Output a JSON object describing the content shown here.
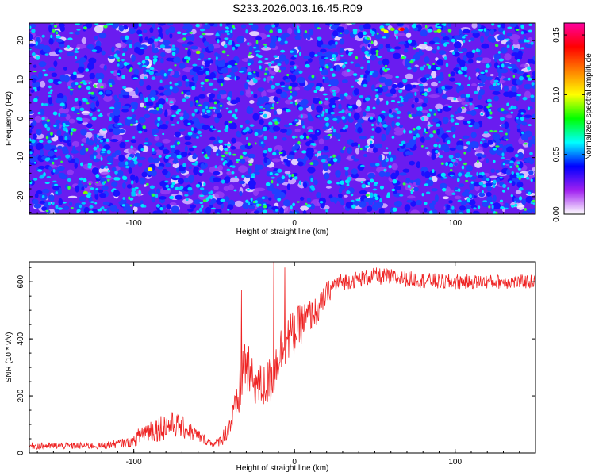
{
  "page_title": "S233.2026.003.16.45.R09",
  "chart_data": [
    {
      "type": "heatmap",
      "title": "S233.2026.003.16.45.R09",
      "xlabel": "Height of straight line (km)",
      "ylabel": "Frequency (Hz)",
      "xlim": [
        -165,
        150
      ],
      "ylim": [
        -24.5,
        24.5
      ],
      "x_ticks": [
        -100,
        0,
        100
      ],
      "y_ticks": [
        -20,
        -10,
        0,
        10,
        20
      ],
      "colorbar": {
        "label": "Normalized spectral amplitude",
        "range": [
          0,
          0.16
        ],
        "ticks": [
          "0.00",
          "0.05",
          "0.10",
          "0.15"
        ],
        "colors": [
          "#ffffff",
          "#a020f0",
          "#0000ff",
          "#00ffff",
          "#00ff00",
          "#ffff00",
          "#ff8000",
          "#ff0000",
          "#ff00a0"
        ]
      },
      "description": "Speckled broadband noise; values mostly 0.01-0.05 with scattered peaks up to ~0.15 near x=55-70 km, 22-23 Hz"
    },
    {
      "type": "line",
      "xlabel": "Height of straight line (km)",
      "ylabel": "SNR (10 * v/v)",
      "xlim": [
        -165,
        150
      ],
      "ylim": [
        0,
        670
      ],
      "x_ticks": [
        -100,
        0,
        100
      ],
      "y_ticks": [
        0,
        200,
        400,
        600
      ],
      "line_color": "#ee2222",
      "series": [
        {
          "name": "SNR",
          "envelope": {
            "x": [
              -165,
              -120,
              -100,
              -95,
              -90,
              -80,
              -75,
              -70,
              -60,
              -50,
              -45,
              -40,
              -35,
              -32,
              -30,
              -28,
              -25,
              -20,
              -15,
              -10,
              -5,
              0,
              5,
              10,
              15,
              20,
              25,
              30,
              40,
              50,
              60,
              70,
              80,
              90,
              100,
              110,
              120,
              130,
              140,
              150
            ],
            "y": [
              25,
              25,
              40,
              70,
              80,
              95,
              100,
              90,
              60,
              30,
              50,
              100,
              180,
              300,
              330,
              260,
              250,
              230,
              250,
              340,
              400,
              420,
              460,
              480,
              500,
              560,
              590,
              600,
              610,
              620,
              615,
              610,
              605,
              600,
              600,
              600,
              600,
              600,
              600,
              600
            ],
            "amplitude": [
              12,
              12,
              18,
              40,
              45,
              50,
              45,
              40,
              25,
              10,
              25,
              45,
              70,
              120,
              120,
              90,
              80,
              80,
              90,
              90,
              90,
              80,
              70,
              60,
              50,
              40,
              35,
              30,
              30,
              30,
              30,
              28,
              28,
              28,
              28,
              25,
              25,
              25,
              25,
              25
            ]
          },
          "peaks": [
            {
              "x": -33,
              "y": 570
            },
            {
              "x": -13,
              "y": 670
            },
            {
              "x": -6,
              "y": 650
            }
          ]
        }
      ]
    }
  ]
}
